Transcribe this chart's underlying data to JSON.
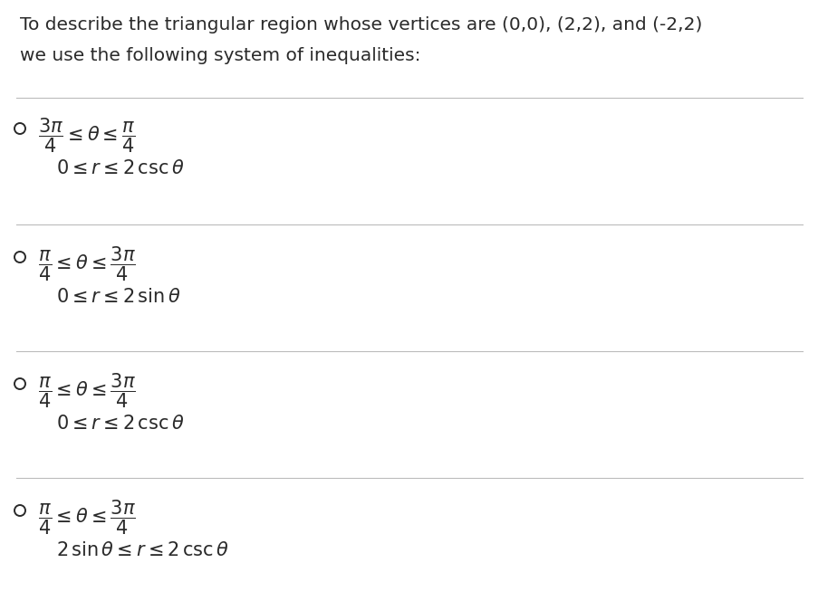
{
  "background_color": "#ffffff",
  "title_line1": "To describe the triangular region whose vertices are (0,0), (2,2), and (-2,2)",
  "title_line2": "we use the following system of inequalities:",
  "title_fontsize": 14.5,
  "math_fontsize": 15,
  "text_color": "#2a2a2a",
  "divider_color": "#bbbbbb",
  "circle_color": "#2a2a2a",
  "theta_exprs": [
    "$\\dfrac{3\\pi}{4} \\leq \\theta \\leq \\dfrac{\\pi}{4}$",
    "$\\dfrac{\\pi}{4} \\leq \\theta \\leq \\dfrac{3\\pi}{4}$",
    "$\\dfrac{\\pi}{4} \\leq \\theta \\leq \\dfrac{3\\pi}{4}$",
    "$\\dfrac{\\pi}{4} \\leq \\theta \\leq \\dfrac{3\\pi}{4}$"
  ],
  "r_exprs": [
    "$0 \\leq r \\leq 2\\,\\mathrm{csc}\\,\\theta$",
    "$0 \\leq r \\leq 2\\,\\mathrm{sin}\\,\\theta$",
    "$0 \\leq r \\leq 2\\,\\mathrm{csc}\\,\\theta$",
    "$2\\,\\mathrm{sin}\\,\\theta \\leq r \\leq 2\\,\\mathrm{csc}\\,\\theta$"
  ]
}
